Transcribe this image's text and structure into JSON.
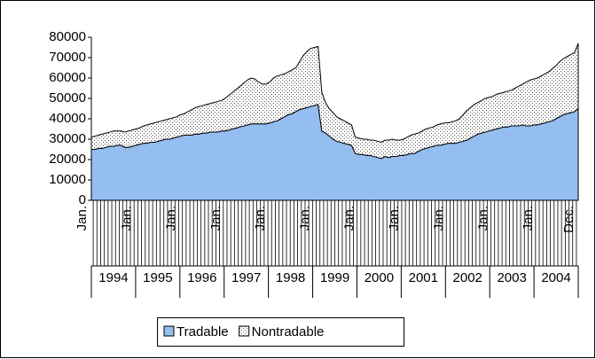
{
  "chart_data": {
    "type": "stacked_area",
    "categories": [
      "Jan.",
      null,
      null,
      null,
      null,
      null,
      null,
      null,
      null,
      null,
      null,
      null,
      "Jan.",
      null,
      null,
      null,
      null,
      null,
      null,
      null,
      null,
      null,
      null,
      null,
      "Jan.",
      null,
      null,
      null,
      null,
      null,
      null,
      null,
      null,
      null,
      null,
      null,
      "Jan.",
      null,
      null,
      null,
      null,
      null,
      null,
      null,
      null,
      null,
      null,
      null,
      "Jan.",
      null,
      null,
      null,
      null,
      null,
      null,
      null,
      null,
      null,
      null,
      null,
      "Jan.",
      null,
      null,
      null,
      null,
      null,
      null,
      null,
      null,
      null,
      null,
      null,
      "Jan.",
      null,
      null,
      null,
      null,
      null,
      null,
      null,
      null,
      null,
      null,
      null,
      "Jan.",
      null,
      null,
      null,
      null,
      null,
      null,
      null,
      null,
      null,
      null,
      null,
      "Jan.",
      null,
      null,
      null,
      null,
      null,
      null,
      null,
      null,
      null,
      null,
      null,
      "Jan.",
      null,
      null,
      null,
      null,
      null,
      null,
      null,
      null,
      null,
      null,
      null,
      "Jan.",
      null,
      null,
      null,
      null,
      null,
      null,
      null,
      null,
      null,
      null,
      "Dec."
    ],
    "year_groups": [
      "1994",
      "1995",
      "1996",
      "1997",
      "1998",
      "1999",
      "2000",
      "2001",
      "2002",
      "2003",
      "2004"
    ],
    "series": [
      {
        "name": "Tradable",
        "color": "#94bdf0",
        "values": [
          25000,
          25000,
          25500,
          25500,
          26000,
          26500,
          26500,
          27000,
          27000,
          26000,
          26000,
          26500,
          27000,
          27500,
          28000,
          28000,
          28500,
          28500,
          29000,
          29500,
          30000,
          30000,
          30500,
          31000,
          31500,
          32000,
          32000,
          32000,
          32500,
          32500,
          33000,
          33000,
          33500,
          33500,
          33500,
          34000,
          34000,
          34500,
          35000,
          35500,
          36000,
          36500,
          37000,
          37500,
          37500,
          37500,
          37500,
          37500,
          38000,
          38500,
          39000,
          40000,
          41000,
          42000,
          42500,
          43500,
          44500,
          45000,
          45500,
          46000,
          46500,
          47000,
          34000,
          33000,
          31500,
          30000,
          29000,
          28500,
          28000,
          27500,
          27000,
          23000,
          22500,
          22500,
          22000,
          22000,
          21500,
          21000,
          20500,
          21500,
          21000,
          21500,
          21500,
          22000,
          22000,
          22500,
          23000,
          23000,
          24000,
          25000,
          25500,
          26000,
          26500,
          27000,
          27000,
          27500,
          28000,
          28000,
          28000,
          28500,
          29000,
          29500,
          30500,
          31500,
          32500,
          33000,
          33500,
          34000,
          34500,
          35000,
          35500,
          36000,
          36000,
          36500,
          36500,
          36500,
          37000,
          36500,
          36500,
          37000,
          37000,
          37500,
          38000,
          38500,
          39000,
          40000,
          41000,
          42000,
          42500,
          43000,
          43500,
          45000
        ]
      },
      {
        "name": "Nontradable",
        "color": "#ffffff",
        "values": [
          6000,
          6500,
          6500,
          7000,
          7000,
          7000,
          7500,
          7000,
          7000,
          7500,
          8000,
          8000,
          8000,
          8000,
          8500,
          9000,
          9000,
          9500,
          9500,
          9500,
          9500,
          10000,
          10000,
          10000,
          10500,
          10500,
          11500,
          12500,
          13000,
          13500,
          13500,
          14000,
          14000,
          14500,
          15000,
          15000,
          16000,
          17000,
          18000,
          19000,
          20000,
          21000,
          22000,
          22500,
          22000,
          20500,
          19500,
          19500,
          20000,
          21500,
          22000,
          21500,
          21000,
          21000,
          21500,
          21500,
          23500,
          26000,
          27500,
          28500,
          28500,
          28500,
          19000,
          15000,
          13500,
          13000,
          12000,
          11500,
          11000,
          10500,
          10000,
          8000,
          8000,
          7500,
          8000,
          7500,
          8000,
          8000,
          8000,
          8000,
          8500,
          8500,
          8000,
          7500,
          8000,
          8500,
          9000,
          9500,
          9000,
          9000,
          9500,
          9500,
          9500,
          10000,
          10500,
          10500,
          10000,
          10500,
          11000,
          11500,
          13000,
          14500,
          15000,
          15500,
          15500,
          16000,
          16500,
          16500,
          16500,
          17000,
          17000,
          17000,
          17500,
          17500,
          18500,
          19500,
          20000,
          21500,
          22500,
          22500,
          23000,
          23500,
          24000,
          24500,
          25500,
          26000,
          27000,
          27500,
          28000,
          28500,
          29000,
          32000
        ]
      }
    ],
    "ylim": [
      0,
      80000
    ],
    "yticks": [
      0,
      10000,
      20000,
      30000,
      40000,
      50000,
      60000,
      70000,
      80000
    ]
  }
}
